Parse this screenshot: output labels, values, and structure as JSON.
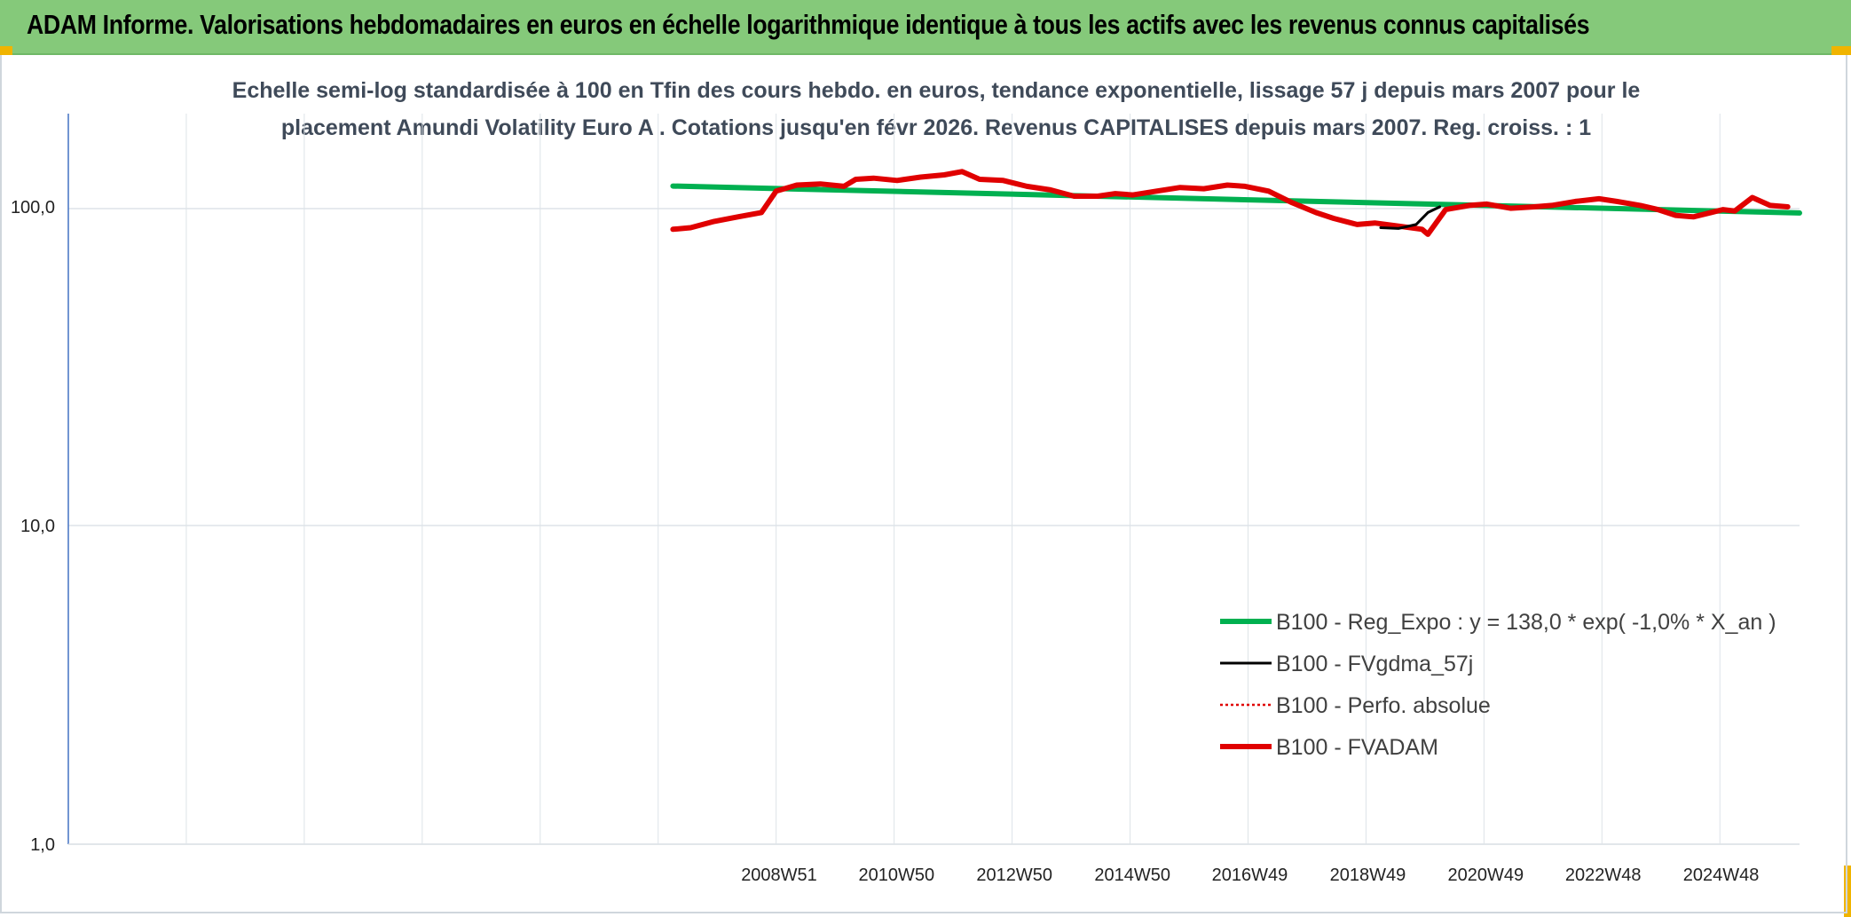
{
  "banner": {
    "title": "ADAM Informe. Valorisations hebdomadaires en euros en échelle logarithmique identique à tous les actifs avec les revenus connus capitalisés",
    "color": "#85c97a",
    "accent": "#f0b400"
  },
  "chart_data": {
    "type": "line",
    "title_line1": "Echelle semi-log standardisée à 100 en Tfin des cours hebdo. en euros, tendance exponentielle, lissage 57 j depuis mars 2007 pour le",
    "title_line2": "placement Amundi Volatility Euro A . Cotations jusqu'en févr 2026. Revenus CAPITALISES depuis mars 2007. Reg. croiss. : 1",
    "y_scale": "log",
    "ylim": [
      1,
      200
    ],
    "y_ticks": [
      "1,0",
      "10,0",
      "100,0"
    ],
    "xlim": [
      1996.95,
      2026.3
    ],
    "x_ticks": [
      {
        "label": "2008W51",
        "x": 2008.97
      },
      {
        "label": "2010W50",
        "x": 2010.96
      },
      {
        "label": "2012W50",
        "x": 2012.96
      },
      {
        "label": "2014W50",
        "x": 2014.96
      },
      {
        "label": "2016W49",
        "x": 2016.95
      },
      {
        "label": "2018W49",
        "x": 2018.95
      },
      {
        "label": "2020W49",
        "x": 2020.95
      },
      {
        "label": "2022W48",
        "x": 2022.94
      },
      {
        "label": "2024W48",
        "x": 2024.94
      }
    ],
    "grid": true,
    "legend_position": "bottom-right",
    "series": [
      {
        "name": "B100 - Reg_Expo : y = 138,0 * exp( -1,0% *  X_an )",
        "color": "#00b050",
        "style": "solid",
        "x": [
          2007.2,
          2026.3
        ],
        "y": [
          116.2,
          95.7
        ]
      },
      {
        "name": "B100 - FVgdma_57j",
        "color": "#000000",
        "style": "solid",
        "x": [
          2019.2,
          2019.5,
          2019.8,
          2020.0,
          2020.2
        ],
        "y": [
          86,
          85.5,
          88,
          96,
          100
        ]
      },
      {
        "name": "B100 - Perfo. absolue",
        "color": "#e00000",
        "style": "dotted",
        "x": [],
        "y": []
      },
      {
        "name": "B100 - FVADAM",
        "color": "#e00000",
        "style": "solid",
        "x": [
          2007.2,
          2007.5,
          2007.9,
          2008.3,
          2008.7,
          2008.95,
          2009.3,
          2009.7,
          2010.1,
          2010.3,
          2010.6,
          2011.0,
          2011.4,
          2011.8,
          2012.1,
          2012.4,
          2012.8,
          2013.2,
          2013.6,
          2014.0,
          2014.4,
          2014.7,
          2015.0,
          2015.4,
          2015.8,
          2016.2,
          2016.6,
          2016.9,
          2017.3,
          2017.7,
          2018.1,
          2018.4,
          2018.8,
          2019.1,
          2019.5,
          2019.9,
          2020.0,
          2020.3,
          2020.7,
          2021.0,
          2021.4,
          2021.8,
          2022.1,
          2022.5,
          2022.9,
          2023.2,
          2023.6,
          2023.9,
          2024.2,
          2024.5,
          2024.8,
          2025.0,
          2025.2,
          2025.5,
          2025.8,
          2026.1
        ],
        "y": [
          85,
          86,
          90,
          93,
          96,
          112,
          117,
          118,
          116,
          122,
          123,
          121,
          124,
          126,
          129,
          122,
          121,
          116,
          113,
          108,
          108,
          110,
          109,
          112,
          115,
          114,
          117,
          116,
          112,
          103,
          96,
          92,
          88,
          89,
          87,
          85,
          82,
          98,
          101,
          102,
          99,
          100,
          101,
          104,
          106,
          104,
          101,
          98,
          94,
          93,
          96,
          98,
          97,
          107,
          101,
          100
        ]
      }
    ]
  }
}
